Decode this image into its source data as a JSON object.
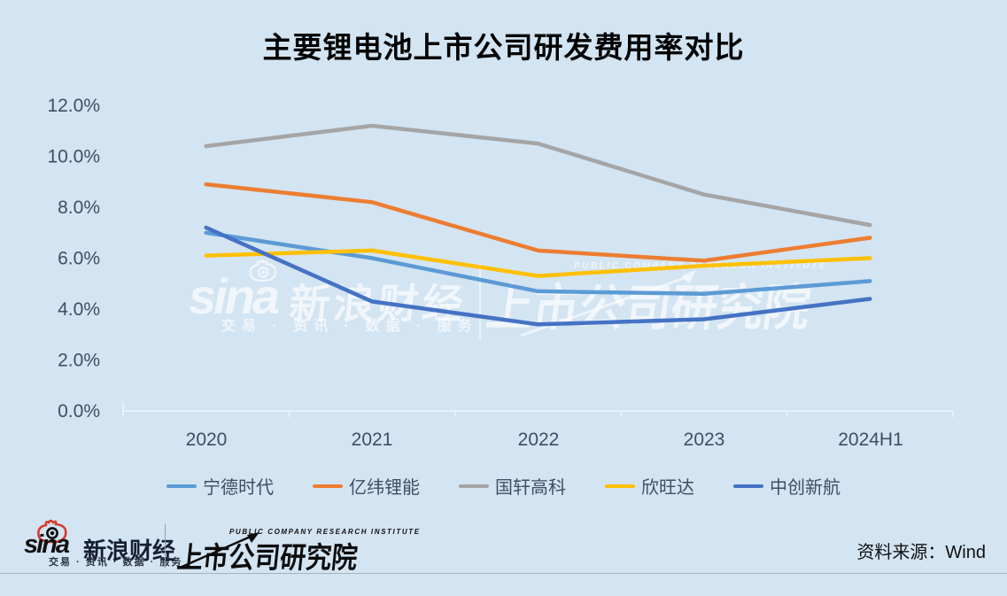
{
  "title": "主要锂电池上市公司研发费用率对比",
  "chart_data": {
    "type": "line",
    "categories": [
      "2020",
      "2021",
      "2022",
      "2023",
      "2024H1"
    ],
    "series": [
      {
        "name": "宁德时代",
        "color": "#5B9BD5",
        "values": [
          7.0,
          6.0,
          4.7,
          4.6,
          5.1
        ]
      },
      {
        "name": "亿纬锂能",
        "color": "#ED7D31",
        "values": [
          8.9,
          8.2,
          6.3,
          5.9,
          6.8
        ]
      },
      {
        "name": "国轩高科",
        "color": "#A5A5A5",
        "values": [
          10.4,
          11.2,
          10.5,
          8.5,
          7.3
        ]
      },
      {
        "name": "欣旺达",
        "color": "#FFC000",
        "values": [
          6.1,
          6.3,
          5.3,
          5.7,
          6.0
        ]
      },
      {
        "name": "中创新航",
        "color": "#4472C4",
        "values": [
          7.2,
          4.3,
          3.4,
          3.6,
          4.4
        ]
      }
    ],
    "y_axis": {
      "min": 0,
      "max": 12,
      "tick_step": 2,
      "tick_labels": [
        "12.0%",
        "10.0%",
        "8.0%",
        "6.0%",
        "4.0%",
        "2.0%",
        "0.0%"
      ]
    },
    "grid": false,
    "legend_position": "bottom"
  },
  "watermark": {
    "sina_logo_text": "sina",
    "sina_finance": "新浪财经",
    "sina_tagline": "交易 · 资讯 · 数据 · 服务",
    "institute_en": "PUBLIC COMPANY RESEARCH INSTITUTE",
    "institute_cn": "上市公司研究院"
  },
  "footer": {
    "sina_logo_text": "sina",
    "sina_finance": "新浪财经",
    "sina_tagline": "交易 · 资讯 · 数据 · 服务",
    "institute_en": "PUBLIC COMPANY RESEARCH INSTITUTE",
    "institute_cn": "上市公司研究院",
    "source_note": "资料来源：Wind"
  },
  "colors": {
    "background": "#D3E4F2",
    "axis_text": "#3F4E63",
    "axis_line_rgba": "rgba(255,255,255,0.65)"
  }
}
